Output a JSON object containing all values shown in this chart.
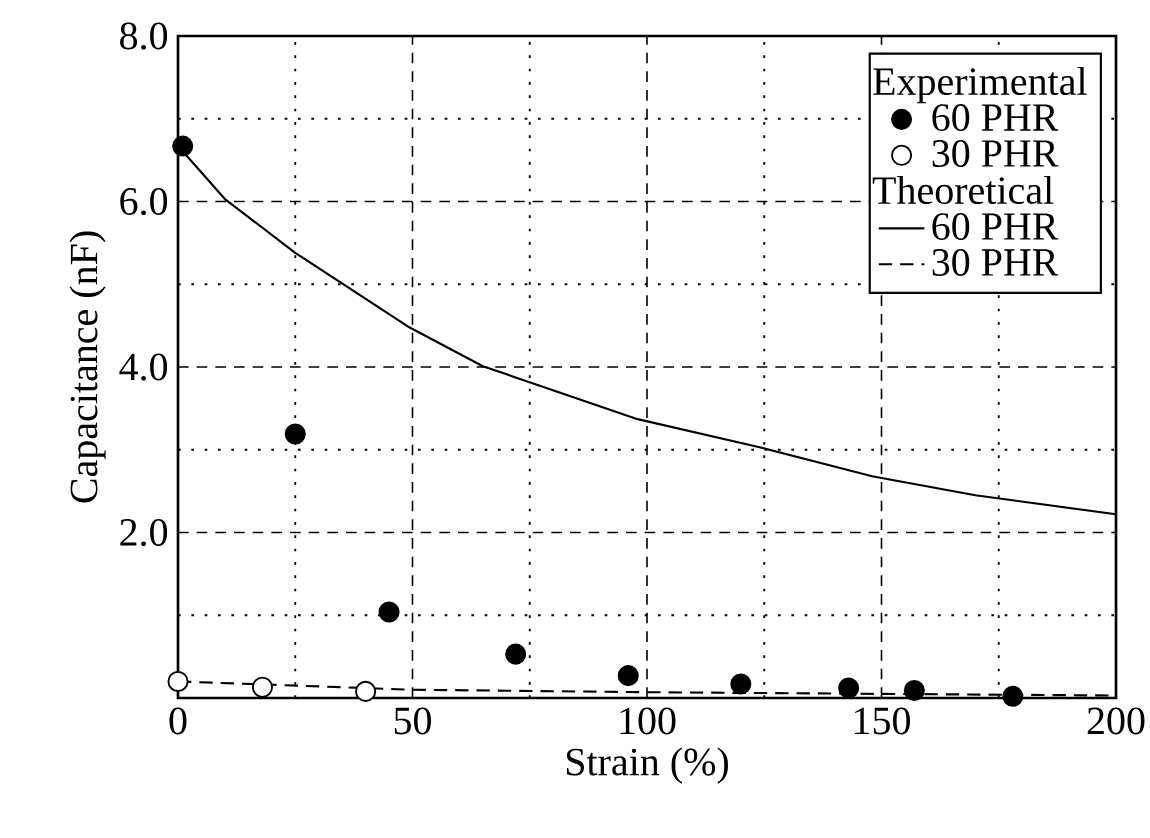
{
  "chart_data": {
    "type": "scatter",
    "xlabel": "Strain (%)",
    "ylabel": "Capacitance (nF)",
    "xlim": [
      0,
      200
    ],
    "ylim": [
      0,
      8
    ],
    "xticks": [
      0,
      50,
      100,
      150,
      200
    ],
    "yticks": [
      {
        "value": 0,
        "label": null
      },
      {
        "value": 2,
        "label": "2.0"
      },
      {
        "value": 4,
        "label": "4.0"
      },
      {
        "value": 6,
        "label": "6.0"
      },
      {
        "value": 8,
        "label": "8.0"
      }
    ],
    "grid": true,
    "legend": "top right",
    "annotations": [
      "Experimental",
      "Theoretical"
    ],
    "series": [
      {
        "name": "60 PHR",
        "marker": "circle",
        "color": "#000000",
        "x": [
          1,
          25,
          45,
          72,
          96,
          120,
          143,
          157,
          178
        ],
        "values": [
          6.67,
          3.19,
          1.04,
          0.53,
          0.27,
          0.17,
          0.12,
          0.09,
          0.02
        ]
      },
      {
        "name": "30 PHR",
        "marker": "circle",
        "color": "#ffffff",
        "x": [
          0,
          18,
          40
        ],
        "values": [
          0.2,
          0.13,
          0.08
        ]
      },
      {
        "name": "60 PHR",
        "type": "line",
        "marker": "none",
        "line_style": "solid",
        "color": "#000000",
        "x": [
          0,
          10,
          25,
          49,
          65,
          98,
          124,
          148,
          170,
          200
        ],
        "values": [
          6.67,
          6.03,
          5.38,
          4.49,
          4.01,
          3.37,
          3.03,
          2.68,
          2.45,
          2.22
        ]
      },
      {
        "name": "30 PHR",
        "type": "line",
        "marker": "none",
        "line_style": "dashed",
        "color": "#000000",
        "x": [
          0,
          50,
          100,
          150,
          200
        ],
        "values": [
          0.2,
          0.1,
          0.07,
          0.05,
          0.03
        ]
      }
    ]
  }
}
